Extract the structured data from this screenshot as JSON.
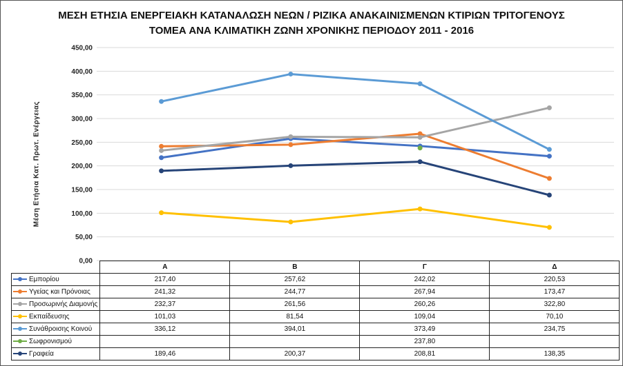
{
  "chart_data": {
    "type": "line",
    "title": "ΜΕΣΗ ΕΤΗΣΙΑ ΕΝΕΡΓΕΙΑΚΗ ΚΑΤΑΝΑΛΩΣΗ ΝΕΩΝ / ΡΙΖΙΚΑ ΑΝΑΚΑΙΝΙΣΜΕΝΩΝ ΚΤΙΡΙΩΝ ΤΡΙΤΟΓΕΝΟΥΣ",
    "title_line2": "ΤΟΜΕΑ ΑΝΑ ΚΛΙΜΑΤΙΚΗ ΖΩΝΗ ΧΡΟΝΙΚΗΣ ΠΕΡΙΟΔΟΥ 2011 - 2016",
    "ylabel": "Μέση Ετήσια Κατ. Πρωτ. Ενέργειας",
    "xlabel": "",
    "categories": [
      "Α",
      "Β",
      "Γ",
      "Δ"
    ],
    "ylim": [
      0,
      450
    ],
    "ytick_labels": [
      "0,00",
      "50,00",
      "100,00",
      "150,00",
      "200,00",
      "250,00",
      "300,00",
      "350,00",
      "400,00",
      "450,00"
    ],
    "grid": true,
    "legend": "data-table",
    "series": [
      {
        "name": "Εμπορίου",
        "color": "#4472C4",
        "values": [
          217.4,
          257.62,
          242.02,
          220.53
        ],
        "labels": [
          "217,40",
          "257,62",
          "242,02",
          "220,53"
        ]
      },
      {
        "name": "Υγείας και Πρόνοιας",
        "color": "#ED7D31",
        "values": [
          241.32,
          244.77,
          267.94,
          173.47
        ],
        "labels": [
          "241,32",
          "244,77",
          "267,94",
          "173,47"
        ]
      },
      {
        "name": "Προσωρινής Διαμονής",
        "color": "#A5A5A5",
        "values": [
          232.37,
          261.56,
          260.26,
          322.8
        ],
        "labels": [
          "232,37",
          "261,56",
          "260,26",
          "322,80"
        ]
      },
      {
        "name": "Εκπαίδευσης",
        "color": "#FFC000",
        "values": [
          101.03,
          81.54,
          109.04,
          70.1
        ],
        "labels": [
          "101,03",
          "81,54",
          "109,04",
          "70,10"
        ]
      },
      {
        "name": "Συνάθροισης Κοινού",
        "color": "#5B9BD5",
        "values": [
          336.12,
          394.01,
          373.49,
          234.75
        ],
        "labels": [
          "336,12",
          "394,01",
          "373,49",
          "234,75"
        ]
      },
      {
        "name": "Σωφρονισμού",
        "color": "#70AD47",
        "values": [
          null,
          null,
          237.8,
          null
        ],
        "labels": [
          "",
          "",
          "237,80",
          ""
        ]
      },
      {
        "name": "Γραφεία",
        "color": "#264478",
        "values": [
          189.46,
          200.37,
          208.81,
          138.35
        ],
        "labels": [
          "189,46",
          "200,37",
          "208,81",
          "138,35"
        ]
      }
    ]
  }
}
